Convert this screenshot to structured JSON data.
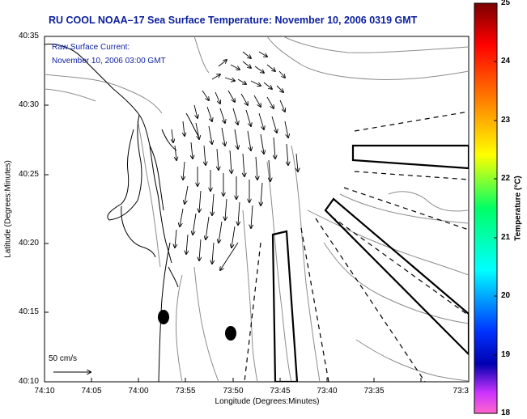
{
  "title": "RU COOL  NOAA–17  Sea Surface Temperature:  November 10, 2006 0319 GMT",
  "legend": {
    "line1": "Raw Surface Current:",
    "line2": "November 10, 2006 03:00 GMT"
  },
  "scale_label": "50 cm/s",
  "x_axis": {
    "label": "Longitude (Degrees:Minutes)",
    "ticks": [
      "74:10",
      "74:05",
      "74:00",
      "73:55",
      "73:50",
      "73:45",
      "73:40",
      "73:35",
      "73:3"
    ]
  },
  "y_axis": {
    "label": "Latitude (Degrees:Minutes)",
    "ticks": [
      "40:35",
      "40:30",
      "40:25",
      "40:20",
      "40:15",
      "40:10"
    ]
  },
  "colorbar": {
    "label": "Temperature (°C)",
    "ticks": [
      "25",
      "24",
      "23",
      "22",
      "21",
      "20",
      "19",
      "18"
    ]
  }
}
